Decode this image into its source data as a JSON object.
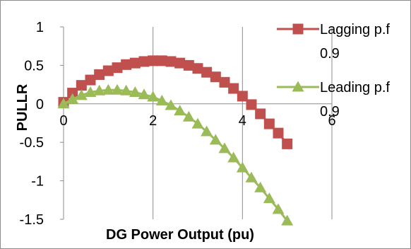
{
  "chart_data": {
    "type": "scatter",
    "xlabel": "DG Power Output (pu)",
    "ylabel": "PULLR",
    "xlim": [
      0,
      6
    ],
    "ylim": [
      -1.5,
      1
    ],
    "x_ticks": [
      0,
      2,
      4,
      6
    ],
    "y_ticks": [
      1,
      0.5,
      0,
      -0.5,
      -1,
      -1.5
    ],
    "x_tick_labels": [
      "0",
      "2",
      "4",
      "6"
    ],
    "y_tick_labels": [
      "1",
      "0.5",
      "0",
      "-0.5",
      "-1",
      "-1.5"
    ],
    "grid": "vertical",
    "legend_position": "right",
    "series": [
      {
        "name": "Lagging p.f 0.9",
        "legend_lines": [
          "Lagging p.f",
          "0.9"
        ],
        "marker": "square",
        "color": "#C0504D",
        "x": [
          0,
          0.2,
          0.4,
          0.6,
          0.8,
          1.0,
          1.2,
          1.4,
          1.6,
          1.8,
          2.0,
          2.2,
          2.4,
          2.6,
          2.8,
          3.0,
          3.2,
          3.4,
          3.6,
          3.8,
          4.0,
          4.2,
          4.4,
          4.6,
          4.8,
          5.0
        ],
        "y": [
          0.02,
          0.14,
          0.24,
          0.31,
          0.38,
          0.43,
          0.47,
          0.51,
          0.53,
          0.55,
          0.56,
          0.56,
          0.55,
          0.53,
          0.5,
          0.46,
          0.41,
          0.35,
          0.28,
          0.2,
          0.1,
          -0.01,
          -0.13,
          -0.26,
          -0.38,
          -0.52
        ]
      },
      {
        "name": "Leading p.f 0.9",
        "legend_lines": [
          "Leading p.f",
          "0.9"
        ],
        "marker": "triangle",
        "color": "#9BBB59",
        "x": [
          0,
          0.2,
          0.4,
          0.6,
          0.8,
          1.0,
          1.2,
          1.4,
          1.6,
          1.8,
          2.0,
          2.2,
          2.4,
          2.6,
          2.8,
          3.0,
          3.2,
          3.4,
          3.6,
          3.8,
          4.0,
          4.2,
          4.4,
          4.6,
          4.8,
          5.0
        ],
        "y": [
          0.0,
          0.06,
          0.11,
          0.15,
          0.17,
          0.18,
          0.18,
          0.17,
          0.15,
          0.12,
          0.09,
          0.04,
          -0.02,
          -0.09,
          -0.17,
          -0.26,
          -0.36,
          -0.47,
          -0.58,
          -0.7,
          -0.83,
          -0.96,
          -1.09,
          -1.23,
          -1.37,
          -1.52
        ]
      }
    ]
  }
}
